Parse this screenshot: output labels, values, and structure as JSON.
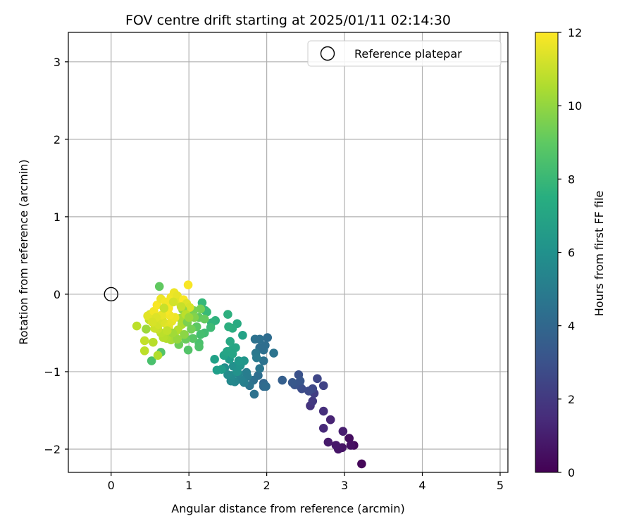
{
  "chart_data": {
    "type": "scatter",
    "title": "FOV centre drift starting at 2025/01/11 02:14:30",
    "xlabel": "Angular distance from reference (arcmin)",
    "ylabel": "Rotation from reference (arcmin)",
    "xlim": [
      -0.55,
      5.1
    ],
    "ylim": [
      -2.3,
      3.38
    ],
    "xticks": [
      0,
      1,
      2,
      3,
      4,
      5
    ],
    "yticks": [
      -2,
      -1,
      0,
      1,
      2,
      3
    ],
    "grid": true,
    "legend": {
      "placement": "top-right",
      "entries": [
        "Reference platepar"
      ]
    },
    "reference_point": {
      "name": "Reference platepar",
      "x": 0,
      "y": 0,
      "marker": "open-circle"
    },
    "colorbar": {
      "label": "Hours from first FF file",
      "range": [
        0,
        12
      ],
      "ticks": [
        0,
        2,
        4,
        6,
        8,
        10,
        12
      ],
      "colormap": "viridis"
    },
    "points": [
      {
        "x": 3.22,
        "y": -2.19,
        "h": 0.2
      },
      {
        "x": 3.12,
        "y": -1.95,
        "h": 0.3
      },
      {
        "x": 3.06,
        "y": -1.86,
        "h": 0.4
      },
      {
        "x": 3.08,
        "y": -1.95,
        "h": 0.5
      },
      {
        "x": 2.97,
        "y": -1.98,
        "h": 0.6
      },
      {
        "x": 2.92,
        "y": -2.0,
        "h": 0.7
      },
      {
        "x": 2.89,
        "y": -1.95,
        "h": 0.8
      },
      {
        "x": 2.79,
        "y": -1.91,
        "h": 0.9
      },
      {
        "x": 2.98,
        "y": -1.77,
        "h": 1.0
      },
      {
        "x": 2.82,
        "y": -1.62,
        "h": 1.2
      },
      {
        "x": 2.73,
        "y": -1.73,
        "h": 1.4
      },
      {
        "x": 2.73,
        "y": -1.51,
        "h": 1.6
      },
      {
        "x": 2.56,
        "y": -1.44,
        "h": 1.8
      },
      {
        "x": 2.59,
        "y": -1.38,
        "h": 2.0
      },
      {
        "x": 2.61,
        "y": -1.28,
        "h": 2.2
      },
      {
        "x": 2.73,
        "y": -1.18,
        "h": 2.4
      },
      {
        "x": 2.65,
        "y": -1.09,
        "h": 2.5
      },
      {
        "x": 2.59,
        "y": -1.22,
        "h": 2.6
      },
      {
        "x": 2.54,
        "y": -1.25,
        "h": 2.7
      },
      {
        "x": 2.45,
        "y": -1.22,
        "h": 2.8
      },
      {
        "x": 2.42,
        "y": -1.18,
        "h": 2.9
      },
      {
        "x": 2.41,
        "y": -1.04,
        "h": 3.0
      },
      {
        "x": 2.36,
        "y": -1.17,
        "h": 3.1
      },
      {
        "x": 2.43,
        "y": -1.12,
        "h": 3.2
      },
      {
        "x": 2.33,
        "y": -1.14,
        "h": 3.3
      },
      {
        "x": 2.2,
        "y": -1.11,
        "h": 3.6
      },
      {
        "x": 1.96,
        "y": -1.15,
        "h": 4.0
      },
      {
        "x": 1.96,
        "y": -1.19,
        "h": 4.1
      },
      {
        "x": 1.99,
        "y": -1.19,
        "h": 4.2
      },
      {
        "x": 1.89,
        "y": -1.05,
        "h": 4.3
      },
      {
        "x": 1.83,
        "y": -1.11,
        "h": 4.4
      },
      {
        "x": 1.84,
        "y": -1.29,
        "h": 4.5
      },
      {
        "x": 1.78,
        "y": -1.18,
        "h": 4.6
      },
      {
        "x": 1.91,
        "y": -0.96,
        "h": 4.7
      },
      {
        "x": 1.96,
        "y": -0.86,
        "h": 4.5
      },
      {
        "x": 1.96,
        "y": -0.72,
        "h": 4.4
      },
      {
        "x": 1.91,
        "y": -0.69,
        "h": 4.3
      },
      {
        "x": 2.01,
        "y": -0.56,
        "h": 4.2
      },
      {
        "x": 2.09,
        "y": -0.76,
        "h": 4.6
      },
      {
        "x": 1.85,
        "y": -0.58,
        "h": 4.5
      },
      {
        "x": 1.91,
        "y": -0.58,
        "h": 4.4
      },
      {
        "x": 1.98,
        "y": -0.66,
        "h": 4.3
      },
      {
        "x": 1.86,
        "y": -0.76,
        "h": 4.8
      },
      {
        "x": 1.87,
        "y": -0.82,
        "h": 4.9
      },
      {
        "x": 1.75,
        "y": -1.06,
        "h": 5.0
      },
      {
        "x": 1.74,
        "y": -1.01,
        "h": 5.1
      },
      {
        "x": 1.71,
        "y": -1.14,
        "h": 5.2
      },
      {
        "x": 1.67,
        "y": -1.1,
        "h": 5.3
      },
      {
        "x": 1.64,
        "y": -1.03,
        "h": 5.4
      },
      {
        "x": 1.59,
        "y": -1.13,
        "h": 5.5
      },
      {
        "x": 1.54,
        "y": -1.12,
        "h": 5.6
      },
      {
        "x": 1.55,
        "y": -1.05,
        "h": 5.7
      },
      {
        "x": 1.5,
        "y": -1.04,
        "h": 5.8
      },
      {
        "x": 1.46,
        "y": -0.95,
        "h": 5.9
      },
      {
        "x": 1.57,
        "y": -0.93,
        "h": 6.0
      },
      {
        "x": 1.62,
        "y": -1.0,
        "h": 6.1
      },
      {
        "x": 1.66,
        "y": -0.92,
        "h": 6.2
      },
      {
        "x": 1.71,
        "y": -0.86,
        "h": 6.3
      },
      {
        "x": 1.64,
        "y": -0.86,
        "h": 6.4
      },
      {
        "x": 1.52,
        "y": -0.84,
        "h": 6.5
      },
      {
        "x": 1.42,
        "y": -0.97,
        "h": 6.6
      },
      {
        "x": 1.36,
        "y": -0.98,
        "h": 6.7
      },
      {
        "x": 1.33,
        "y": -0.84,
        "h": 6.8
      },
      {
        "x": 1.45,
        "y": -0.79,
        "h": 6.9
      },
      {
        "x": 1.49,
        "y": -0.74,
        "h": 7.0
      },
      {
        "x": 1.55,
        "y": -0.72,
        "h": 7.1
      },
      {
        "x": 1.53,
        "y": -0.61,
        "h": 7.2
      },
      {
        "x": 1.6,
        "y": -0.69,
        "h": 7.1
      },
      {
        "x": 1.56,
        "y": -0.77,
        "h": 7.0
      },
      {
        "x": 1.69,
        "y": -0.53,
        "h": 6.9
      },
      {
        "x": 1.62,
        "y": -0.38,
        "h": 7.3
      },
      {
        "x": 1.56,
        "y": -0.44,
        "h": 7.4
      },
      {
        "x": 1.51,
        "y": -0.42,
        "h": 7.5
      },
      {
        "x": 1.5,
        "y": -0.26,
        "h": 7.6
      },
      {
        "x": 1.34,
        "y": -0.34,
        "h": 7.7
      },
      {
        "x": 1.29,
        "y": -0.37,
        "h": 7.8
      },
      {
        "x": 1.21,
        "y": -0.21,
        "h": 7.9
      },
      {
        "x": 1.17,
        "y": -0.11,
        "h": 8.0
      },
      {
        "x": 1.23,
        "y": -0.23,
        "h": 8.1
      },
      {
        "x": 1.28,
        "y": -0.43,
        "h": 8.2
      },
      {
        "x": 1.2,
        "y": -0.5,
        "h": 8.3
      },
      {
        "x": 1.15,
        "y": -0.52,
        "h": 8.4
      },
      {
        "x": 1.13,
        "y": -0.63,
        "h": 8.5
      },
      {
        "x": 1.13,
        "y": -0.68,
        "h": 8.6
      },
      {
        "x": 0.99,
        "y": -0.72,
        "h": 8.7
      },
      {
        "x": 1.05,
        "y": -0.57,
        "h": 8.8
      },
      {
        "x": 1.1,
        "y": -0.42,
        "h": 8.9
      },
      {
        "x": 1.13,
        "y": -0.3,
        "h": 9.0
      },
      {
        "x": 1.2,
        "y": -0.32,
        "h": 9.1
      },
      {
        "x": 0.96,
        "y": -0.58,
        "h": 9.2
      },
      {
        "x": 0.87,
        "y": -0.65,
        "h": 9.3
      },
      {
        "x": 1.15,
        "y": -0.19,
        "h": 9.4
      },
      {
        "x": 1.06,
        "y": -0.21,
        "h": 9.5
      },
      {
        "x": 0.62,
        "y": 0.1,
        "h": 9.0
      },
      {
        "x": 0.52,
        "y": -0.86,
        "h": 8.5
      },
      {
        "x": 0.64,
        "y": -0.75,
        "h": 8.7
      },
      {
        "x": 0.6,
        "y": -0.79,
        "h": 10.6
      },
      {
        "x": 0.43,
        "y": -0.73,
        "h": 10.8
      },
      {
        "x": 0.54,
        "y": -0.62,
        "h": 10.7
      },
      {
        "x": 0.43,
        "y": -0.6,
        "h": 10.9
      },
      {
        "x": 0.33,
        "y": -0.41,
        "h": 10.8
      },
      {
        "x": 0.45,
        "y": -0.45,
        "h": 10.2
      },
      {
        "x": 0.49,
        "y": -0.33,
        "h": 10.9
      },
      {
        "x": 0.5,
        "y": -0.26,
        "h": 11.2
      },
      {
        "x": 0.47,
        "y": -0.28,
        "h": 11.5
      },
      {
        "x": 0.55,
        "y": -0.22,
        "h": 11.8
      },
      {
        "x": 0.59,
        "y": -0.14,
        "h": 11.9
      },
      {
        "x": 0.64,
        "y": -0.06,
        "h": 11.7
      },
      {
        "x": 0.7,
        "y": -0.1,
        "h": 11.8
      },
      {
        "x": 0.74,
        "y": -0.18,
        "h": 11.9
      },
      {
        "x": 0.77,
        "y": -0.04,
        "h": 11.8
      },
      {
        "x": 0.81,
        "y": 0.02,
        "h": 11.7
      },
      {
        "x": 0.85,
        "y": -0.02,
        "h": 11.6
      },
      {
        "x": 0.87,
        "y": -0.1,
        "h": 11.5
      },
      {
        "x": 0.93,
        "y": -0.07,
        "h": 11.9
      },
      {
        "x": 0.99,
        "y": 0.12,
        "h": 11.9
      },
      {
        "x": 0.97,
        "y": -0.12,
        "h": 11.4
      },
      {
        "x": 1.01,
        "y": -0.17,
        "h": 11.3
      },
      {
        "x": 0.92,
        "y": -0.2,
        "h": 10.0
      },
      {
        "x": 0.89,
        "y": -0.31,
        "h": 10.4
      },
      {
        "x": 0.91,
        "y": -0.39,
        "h": 10.5
      },
      {
        "x": 0.86,
        "y": -0.46,
        "h": 10.6
      },
      {
        "x": 0.82,
        "y": -0.55,
        "h": 10.5
      },
      {
        "x": 0.77,
        "y": -0.59,
        "h": 10.4
      },
      {
        "x": 0.71,
        "y": -0.57,
        "h": 10.6
      },
      {
        "x": 0.67,
        "y": -0.56,
        "h": 10.7
      },
      {
        "x": 0.64,
        "y": -0.5,
        "h": 10.8
      },
      {
        "x": 0.6,
        "y": -0.45,
        "h": 11.0
      },
      {
        "x": 0.56,
        "y": -0.44,
        "h": 11.1
      },
      {
        "x": 0.61,
        "y": -0.39,
        "h": 11.2
      },
      {
        "x": 0.66,
        "y": -0.34,
        "h": 11.3
      },
      {
        "x": 0.7,
        "y": -0.38,
        "h": 11.4
      },
      {
        "x": 0.74,
        "y": -0.42,
        "h": 11.5
      },
      {
        "x": 0.78,
        "y": -0.35,
        "h": 11.6
      },
      {
        "x": 0.82,
        "y": -0.3,
        "h": 11.7
      },
      {
        "x": 0.75,
        "y": -0.27,
        "h": 11.8
      },
      {
        "x": 0.7,
        "y": -0.22,
        "h": 11.9
      },
      {
        "x": 0.65,
        "y": -0.27,
        "h": 11.6
      },
      {
        "x": 0.58,
        "y": -0.3,
        "h": 11.4
      },
      {
        "x": 0.53,
        "y": -0.36,
        "h": 11.3
      },
      {
        "x": 0.98,
        "y": -0.36,
        "h": 9.6
      },
      {
        "x": 1.03,
        "y": -0.45,
        "h": 9.4
      },
      {
        "x": 1.07,
        "y": -0.3,
        "h": 9.7
      },
      {
        "x": 0.94,
        "y": -0.52,
        "h": 9.9
      },
      {
        "x": 0.85,
        "y": -0.58,
        "h": 10.1
      },
      {
        "x": 0.79,
        "y": -0.5,
        "h": 10.3
      },
      {
        "x": 0.9,
        "y": -0.16,
        "h": 11.0
      },
      {
        "x": 0.8,
        "y": -0.1,
        "h": 11.2
      },
      {
        "x": 0.96,
        "y": -0.26,
        "h": 10.8
      },
      {
        "x": 1.0,
        "y": -0.3,
        "h": 10.2
      },
      {
        "x": 0.72,
        "y": -0.47,
        "h": 10.9
      },
      {
        "x": 0.68,
        "y": -0.18,
        "h": 11.0
      }
    ]
  }
}
